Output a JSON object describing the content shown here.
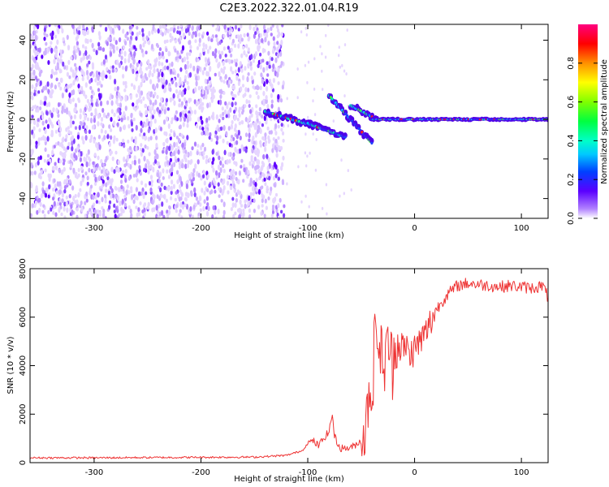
{
  "title": "C2E3.2022.322.01.04.R19",
  "chart_data": [
    {
      "type": "heatmap",
      "xlabel": "Height of straight line (km)",
      "ylabel": "Frequency (Hz)",
      "xlim": [
        -360,
        125
      ],
      "ylim": [
        -50,
        48
      ],
      "x_ticks": [
        -300,
        -200,
        -100,
        0,
        100
      ],
      "y_ticks": [
        -40,
        -20,
        0,
        20,
        40
      ],
      "colorbar": {
        "label": "Normalized spectral amplitude",
        "range": [
          0,
          1
        ],
        "ticks": [
          0.0,
          0.2,
          0.4,
          0.6,
          0.8
        ]
      },
      "grid": false,
      "features": [
        {
          "type": "noise",
          "x_range": [
            -360,
            -122
          ],
          "freq_range": [
            -50,
            48
          ]
        },
        {
          "type": "streak",
          "x0": -140,
          "x1": -90,
          "f0": 4,
          "f1": -4
        },
        {
          "type": "streak",
          "x0": -100,
          "x1": -65,
          "f0": -2,
          "f1": -9
        },
        {
          "type": "streak",
          "x0": -80,
          "x1": -40,
          "f0": 12,
          "f1": -12
        },
        {
          "type": "streak",
          "x0": -60,
          "x1": -35,
          "f0": 7,
          "f1": 0
        },
        {
          "type": "streak",
          "x0": -40,
          "x1": 125,
          "f0": 0,
          "f1": 0
        }
      ]
    },
    {
      "type": "line",
      "xlabel": "Height of straight line (km)",
      "ylabel": "SNR (10 * v/v)",
      "xlim": [
        -360,
        125
      ],
      "ylim": [
        0,
        8000
      ],
      "x_ticks": [
        -300,
        -200,
        -100,
        0,
        100
      ],
      "y_ticks": [
        0,
        2000,
        4000,
        6000,
        8000
      ],
      "color": "#ee3333",
      "grid": false,
      "series": [
        {
          "x": [
            -360,
            -300,
            -250,
            -200,
            -150,
            -120,
            -105,
            -100,
            -95,
            -90,
            -85,
            -80,
            -77,
            -75,
            -70,
            -60,
            -50,
            -45,
            -42,
            -40,
            -38,
            -35,
            -32,
            -30,
            -28,
            -25,
            -22,
            -20,
            -18,
            -15,
            -12,
            -10,
            -8,
            -5,
            0,
            5,
            10,
            15,
            20,
            25,
            30,
            35,
            40,
            50,
            60,
            70,
            80,
            90,
            100,
            110,
            120,
            125
          ],
          "y": [
            200,
            200,
            210,
            220,
            230,
            300,
            500,
            800,
            900,
            700,
            1000,
            1300,
            2000,
            1100,
            600,
            600,
            900,
            1600,
            3500,
            2500,
            4500,
            5800,
            4000,
            5000,
            3300,
            5300,
            4200,
            4000,
            5500,
            4600,
            5000,
            4500,
            4900,
            4400,
            4700,
            5000,
            5300,
            5800,
            6300,
            6600,
            6900,
            7100,
            7300,
            7400,
            7350,
            7300,
            7250,
            7300,
            7250,
            7200,
            7300,
            6800
          ]
        }
      ]
    }
  ]
}
